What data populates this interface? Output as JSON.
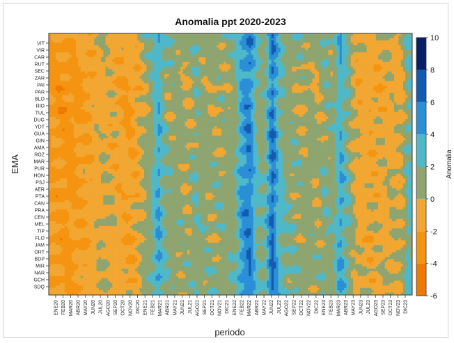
{
  "chart_data": {
    "type": "heatmap",
    "title": "Anomalia ppt 2020-2023",
    "xlabel": "periodo",
    "ylabel": "EMA",
    "colorbar_label": "Anomalia",
    "x": [
      "ENE20",
      "FEB20",
      "MAR20",
      "ABR20",
      "MAY20",
      "JUN20",
      "JUL20",
      "AGO20",
      "SEP20",
      "OCT20",
      "NOV20",
      "DIC20",
      "ENE21",
      "FEB21",
      "MAR21",
      "ABR21",
      "MAY21",
      "JUN21",
      "JUL21",
      "AGO21",
      "SEP21",
      "OCT21",
      "NOV21",
      "DIC21",
      "ENE22",
      "FEB22",
      "MAR22",
      "ABR22",
      "MAY22",
      "JUN22",
      "JUL22",
      "AGO22",
      "SEP22",
      "OCT22",
      "NOV22",
      "DIC22",
      "ENE23",
      "FEB23",
      "MAR23",
      "ABR23",
      "MAY23",
      "JUN23",
      "JUL23",
      "AGO23",
      "SEP23",
      "OCT23",
      "NOV23",
      "DIC23"
    ],
    "y": [
      "VIT",
      "VIR",
      "CAR",
      "RUT",
      "SEC",
      "ZAR",
      "PAI",
      "PAR",
      "BLO",
      "RIO",
      "TUL",
      "DUG",
      "YDT",
      "GUA",
      "GIN",
      "AMA",
      "ROZ",
      "MAR",
      "PUR",
      "HON",
      "PSJ",
      "AER",
      "PTA",
      "CAN",
      "PRA",
      "CEN",
      "MEL",
      "TIP",
      "FLO",
      "JAM",
      "ORT",
      "BDP",
      "MIR",
      "NAR",
      "GCH",
      "SDQ"
    ],
    "color_scale": {
      "min": -6,
      "max": 10,
      "ticks": [
        10,
        8,
        6,
        4,
        2,
        0,
        -2,
        -4,
        -6
      ],
      "bands": [
        {
          "from": -6,
          "to": -4,
          "color": "#f07a00"
        },
        {
          "from": -4,
          "to": -2,
          "color": "#f59410"
        },
        {
          "from": -2,
          "to": 0,
          "color": "#f2a733"
        },
        {
          "from": 0,
          "to": 2,
          "color": "#8fa570"
        },
        {
          "from": 2,
          "to": 4,
          "color": "#4fb8c9"
        },
        {
          "from": 4,
          "to": 6,
          "color": "#2a8fd6"
        },
        {
          "from": 6,
          "to": 8,
          "color": "#125bb0"
        },
        {
          "from": 8,
          "to": 10,
          "color": "#081f66"
        }
      ]
    },
    "column_profile": [
      -2.2,
      -2.6,
      -2.7,
      -2.2,
      -1.8,
      -1.4,
      -0.6,
      -0.4,
      -0.8,
      -1.5,
      -1.9,
      -1.2,
      0.2,
      1.4,
      4.0,
      1.2,
      1.0,
      0.6,
      0.4,
      1.6,
      0.8,
      0.7,
      0.8,
      1.0,
      1.2,
      4.2,
      5.6,
      2.0,
      1.4,
      6.2,
      2.4,
      1.2,
      1.0,
      0.6,
      0.8,
      0.4,
      1.4,
      1.1,
      3.8,
      1.6,
      -0.6,
      -0.8,
      -1.2,
      -0.8,
      -0.6,
      -0.2,
      -0.6,
      2.2
    ],
    "row_profile": [
      0.6,
      0.3,
      0.2,
      0.1,
      -0.2,
      -0.1,
      -0.3,
      -0.6,
      0.0,
      -0.3,
      -0.4,
      -0.3,
      -0.2,
      0.2,
      0.0,
      -0.2,
      -0.1,
      0.1,
      0.0,
      0.3,
      0.1,
      0.0,
      0.0,
      0.3,
      0.2,
      0.2,
      0.6,
      0.3,
      -0.5,
      0.4,
      0.1,
      0.3,
      0.7,
      0.3,
      0.3,
      0.4
    ]
  }
}
